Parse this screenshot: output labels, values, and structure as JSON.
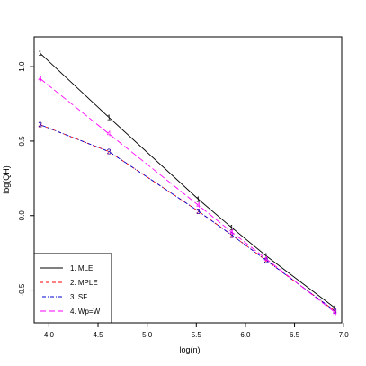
{
  "chart_data": {
    "type": "line",
    "title": "",
    "xlabel": "log(n)",
    "ylabel": "log(QH)",
    "xlim": [
      3.85,
      6.98
    ],
    "ylim": [
      -0.72,
      1.2
    ],
    "x_ticks": [
      4.0,
      4.5,
      5.0,
      5.5,
      6.0,
      6.5,
      7.0
    ],
    "x_tick_labels": [
      "4.0",
      "4.5",
      "5.0",
      "5.5",
      "6.0",
      "6.5",
      "7.0"
    ],
    "y_ticks": [
      -0.5,
      0.0,
      0.5,
      1.0
    ],
    "y_tick_labels": [
      "-0.5",
      "0.0",
      "0.5",
      "1.0"
    ],
    "x": [
      3.91,
      4.61,
      5.52,
      5.86,
      6.21,
      6.91
    ],
    "series": [
      {
        "name": "1. MLE",
        "marker": "1",
        "color": "#000000",
        "dash": "solid",
        "values": [
          1.09,
          0.66,
          0.11,
          -0.08,
          -0.27,
          -0.62
        ]
      },
      {
        "name": "2. MPLE",
        "marker": "2",
        "color": "#ff0000",
        "dash": "dashed",
        "values": [
          0.61,
          0.43,
          0.03,
          -0.13,
          -0.3,
          -0.64
        ]
      },
      {
        "name": "3. SF",
        "marker": "3",
        "color": "#0000cd",
        "dash": "dotdash",
        "values": [
          0.61,
          0.43,
          0.03,
          -0.13,
          -0.3,
          -0.64
        ]
      },
      {
        "name": "4. Wp=W",
        "marker": "4",
        "color": "#ff00ff",
        "dash": "longdash",
        "values": [
          0.92,
          0.55,
          0.07,
          -0.11,
          -0.29,
          -0.65
        ]
      }
    ],
    "legend_position": "bottom-left",
    "grid": false
  }
}
